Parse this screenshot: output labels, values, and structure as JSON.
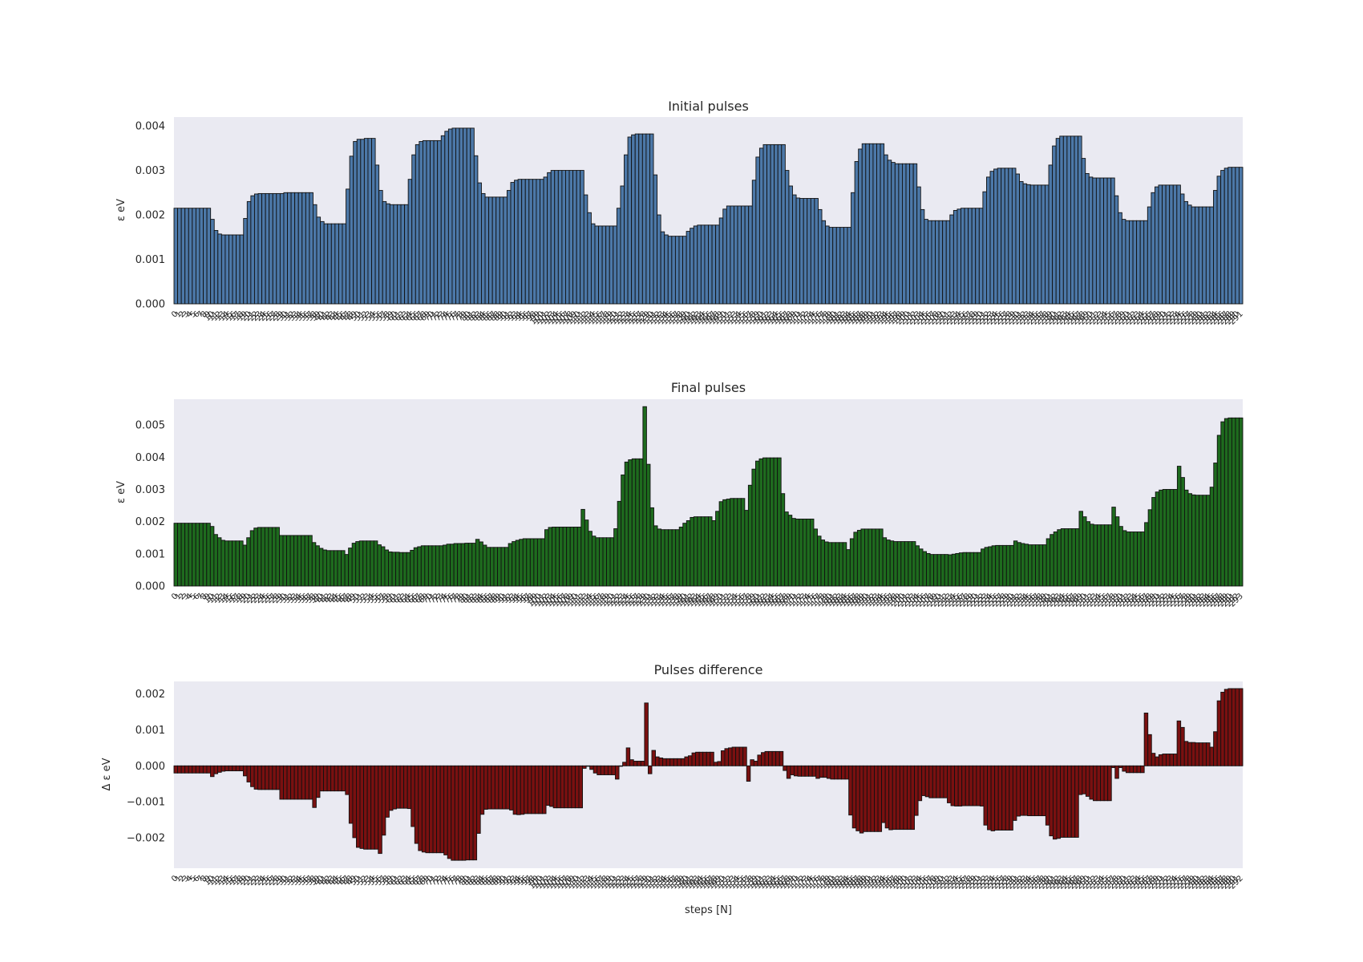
{
  "chart_data": [
    {
      "type": "bar",
      "title": "Initial pulses",
      "ylabel": "ε eV",
      "xlabel": "",
      "color": "#4c78a8",
      "ylim": [
        0,
        0.0042
      ],
      "yticks": [
        "0.000",
        "0.001",
        "0.002",
        "0.003",
        "0.004"
      ],
      "grid": false,
      "values": [
        0.00215,
        0.00215,
        0.00215,
        0.00215,
        0.00215,
        0.00215,
        0.00215,
        0.00215,
        0.00215,
        0.00215,
        0.0019,
        0.00165,
        0.00157,
        0.00155,
        0.00155,
        0.00155,
        0.00155,
        0.00155,
        0.00155,
        0.00192,
        0.0023,
        0.00243,
        0.00247,
        0.00248,
        0.00248,
        0.00248,
        0.00248,
        0.00248,
        0.00248,
        0.00248,
        0.0025,
        0.0025,
        0.0025,
        0.0025,
        0.0025,
        0.0025,
        0.0025,
        0.0025,
        0.00223,
        0.00195,
        0.00185,
        0.0018,
        0.0018,
        0.0018,
        0.0018,
        0.0018,
        0.0018,
        0.00258,
        0.00332,
        0.00365,
        0.0037,
        0.0037,
        0.00372,
        0.00372,
        0.00372,
        0.00312,
        0.00255,
        0.0023,
        0.00225,
        0.00223,
        0.00223,
        0.00223,
        0.00223,
        0.00223,
        0.0028,
        0.00335,
        0.00358,
        0.00365,
        0.00367,
        0.00367,
        0.00367,
        0.00367,
        0.00367,
        0.00378,
        0.00388,
        0.00393,
        0.00395,
        0.00395,
        0.00395,
        0.00395,
        0.00395,
        0.00395,
        0.00333,
        0.00272,
        0.00248,
        0.0024,
        0.0024,
        0.0024,
        0.0024,
        0.0024,
        0.0024,
        0.00255,
        0.00273,
        0.00278,
        0.0028,
        0.0028,
        0.0028,
        0.0028,
        0.0028,
        0.0028,
        0.0028,
        0.00285,
        0.00295,
        0.003,
        0.003,
        0.003,
        0.003,
        0.003,
        0.003,
        0.003,
        0.003,
        0.003,
        0.00245,
        0.00205,
        0.0018,
        0.00175,
        0.00175,
        0.00175,
        0.00175,
        0.00175,
        0.00175,
        0.00215,
        0.00265,
        0.00335,
        0.00375,
        0.0038,
        0.00382,
        0.00382,
        0.00382,
        0.00382,
        0.00382,
        0.0029,
        0.002,
        0.00162,
        0.00155,
        0.00152,
        0.00152,
        0.00152,
        0.00152,
        0.00152,
        0.00163,
        0.0017,
        0.00175,
        0.00177,
        0.00177,
        0.00177,
        0.00177,
        0.00177,
        0.00177,
        0.00193,
        0.00213,
        0.0022,
        0.0022,
        0.0022,
        0.0022,
        0.0022,
        0.0022,
        0.0022,
        0.00278,
        0.0033,
        0.0035,
        0.00358,
        0.00358,
        0.00358,
        0.00358,
        0.00358,
        0.00358,
        0.003,
        0.00265,
        0.00245,
        0.00238,
        0.00237,
        0.00237,
        0.00237,
        0.00237,
        0.00237,
        0.00212,
        0.00187,
        0.00175,
        0.00172,
        0.00172,
        0.00172,
        0.00172,
        0.00172,
        0.00172,
        0.0025,
        0.0032,
        0.00348,
        0.0036,
        0.0036,
        0.0036,
        0.0036,
        0.0036,
        0.0036,
        0.00335,
        0.00323,
        0.00318,
        0.00315,
        0.00315,
        0.00315,
        0.00315,
        0.00315,
        0.00315,
        0.00263,
        0.00212,
        0.0019,
        0.00187,
        0.00187,
        0.00187,
        0.00187,
        0.00187,
        0.00187,
        0.002,
        0.0021,
        0.00213,
        0.00215,
        0.00215,
        0.00215,
        0.00215,
        0.00215,
        0.00215,
        0.00252,
        0.00285,
        0.00298,
        0.00303,
        0.00305,
        0.00305,
        0.00305,
        0.00305,
        0.00305,
        0.00292,
        0.00275,
        0.0027,
        0.00268,
        0.00267,
        0.00267,
        0.00267,
        0.00267,
        0.00267,
        0.00312,
        0.00355,
        0.00372,
        0.00377,
        0.00377,
        0.00377,
        0.00377,
        0.00377,
        0.00377,
        0.00327,
        0.00293,
        0.00285,
        0.00283,
        0.00283,
        0.00283,
        0.00283,
        0.00283,
        0.00283,
        0.00243,
        0.00205,
        0.0019,
        0.00187,
        0.00187,
        0.00187,
        0.00187,
        0.00187,
        0.00187,
        0.00218,
        0.0025,
        0.00263,
        0.00267,
        0.00267,
        0.00267,
        0.00267,
        0.00267,
        0.00267,
        0.00247,
        0.0023,
        0.00222,
        0.00218,
        0.00218,
        0.00218,
        0.00218,
        0.00218,
        0.00218,
        0.00255,
        0.00287,
        0.003,
        0.00305,
        0.00307,
        0.00307,
        0.00307,
        0.00307
      ]
    },
    {
      "type": "bar",
      "title": "Final pulses",
      "ylabel": "ε eV",
      "xlabel": "",
      "color": "#1e6b1e",
      "ylim": [
        0,
        0.0058
      ],
      "yticks": [
        "0.000",
        "0.001",
        "0.002",
        "0.003",
        "0.004",
        "0.005"
      ],
      "grid": false,
      "values": [
        0.00195,
        0.00195,
        0.00195,
        0.00195,
        0.00195,
        0.00195,
        0.00195,
        0.00195,
        0.00195,
        0.00195,
        0.00185,
        0.0016,
        0.0015,
        0.00142,
        0.0014,
        0.0014,
        0.0014,
        0.0014,
        0.0014,
        0.00127,
        0.0015,
        0.00172,
        0.0018,
        0.00182,
        0.00182,
        0.00182,
        0.00182,
        0.00182,
        0.00182,
        0.00157,
        0.00157,
        0.00157,
        0.00157,
        0.00157,
        0.00157,
        0.00157,
        0.00157,
        0.00157,
        0.00135,
        0.00125,
        0.00117,
        0.00112,
        0.0011,
        0.0011,
        0.0011,
        0.0011,
        0.0011,
        0.00098,
        0.00118,
        0.00133,
        0.00138,
        0.0014,
        0.0014,
        0.0014,
        0.0014,
        0.0014,
        0.00128,
        0.00122,
        0.00112,
        0.00106,
        0.00105,
        0.00105,
        0.00104,
        0.00104,
        0.00104,
        0.00111,
        0.00119,
        0.00122,
        0.00125,
        0.00125,
        0.00125,
        0.00125,
        0.00125,
        0.00125,
        0.00127,
        0.0013,
        0.0013,
        0.00132,
        0.00132,
        0.00132,
        0.00133,
        0.00133,
        0.00133,
        0.00145,
        0.00137,
        0.00127,
        0.0012,
        0.0012,
        0.0012,
        0.0012,
        0.0012,
        0.0012,
        0.00132,
        0.00138,
        0.00142,
        0.00145,
        0.00147,
        0.00147,
        0.00147,
        0.00147,
        0.00147,
        0.00147,
        0.00175,
        0.00182,
        0.00183,
        0.00183,
        0.00183,
        0.00183,
        0.00183,
        0.00183,
        0.00183,
        0.00183,
        0.00238,
        0.00205,
        0.0017,
        0.00155,
        0.0015,
        0.0015,
        0.0015,
        0.0015,
        0.0015,
        0.00178,
        0.00263,
        0.00345,
        0.00385,
        0.00392,
        0.00395,
        0.00395,
        0.00395,
        0.00557,
        0.00378,
        0.00243,
        0.00187,
        0.00177,
        0.00175,
        0.00175,
        0.00175,
        0.00175,
        0.00175,
        0.00183,
        0.00195,
        0.00203,
        0.00213,
        0.00215,
        0.00215,
        0.00215,
        0.00215,
        0.00215,
        0.00203,
        0.00232,
        0.00262,
        0.00268,
        0.0027,
        0.00272,
        0.00272,
        0.00272,
        0.00272,
        0.00235,
        0.00313,
        0.00363,
        0.00388,
        0.00395,
        0.00398,
        0.00398,
        0.00398,
        0.00398,
        0.00398,
        0.00287,
        0.0023,
        0.0022,
        0.0021,
        0.00208,
        0.00208,
        0.00208,
        0.00208,
        0.00208,
        0.00177,
        0.00155,
        0.00143,
        0.00137,
        0.00135,
        0.00135,
        0.00135,
        0.00135,
        0.00135,
        0.00113,
        0.00147,
        0.00167,
        0.00173,
        0.00177,
        0.00177,
        0.00177,
        0.00177,
        0.00177,
        0.00177,
        0.0015,
        0.00143,
        0.0014,
        0.00138,
        0.00138,
        0.00138,
        0.00138,
        0.00138,
        0.00138,
        0.00125,
        0.00115,
        0.00107,
        0.00101,
        0.00098,
        0.00098,
        0.00098,
        0.00098,
        0.00098,
        0.00097,
        0.00099,
        0.00101,
        0.00103,
        0.00104,
        0.00104,
        0.00104,
        0.00104,
        0.00104,
        0.00115,
        0.0012,
        0.00122,
        0.00125,
        0.00126,
        0.00126,
        0.00126,
        0.00126,
        0.00126,
        0.0014,
        0.00135,
        0.00132,
        0.0013,
        0.00128,
        0.00128,
        0.00128,
        0.00128,
        0.00128,
        0.00147,
        0.0016,
        0.00168,
        0.00175,
        0.00178,
        0.00178,
        0.00178,
        0.00178,
        0.00178,
        0.00232,
        0.00215,
        0.002,
        0.00192,
        0.0019,
        0.0019,
        0.0019,
        0.0019,
        0.0019,
        0.00245,
        0.00215,
        0.00185,
        0.00172,
        0.00168,
        0.00168,
        0.00168,
        0.00168,
        0.00168,
        0.00197,
        0.00237,
        0.00275,
        0.00292,
        0.00298,
        0.003,
        0.003,
        0.003,
        0.003,
        0.00372,
        0.00337,
        0.00298,
        0.00287,
        0.00283,
        0.00282,
        0.00282,
        0.00282,
        0.00282,
        0.00307,
        0.00382,
        0.00468,
        0.0051,
        0.0052,
        0.00522,
        0.00522,
        0.00522,
        0.00522
      ]
    },
    {
      "type": "bar",
      "title": "Pulses difference",
      "ylabel": "Δ ε eV",
      "xlabel": "steps [N]",
      "color": "#7a1010",
      "ylim": [
        -0.00285,
        0.00235
      ],
      "yticks": [
        "−0.002",
        "−0.001",
        "0.000",
        "0.001",
        "0.002"
      ],
      "grid": false,
      "values": [
        -0.0002,
        -0.0002,
        -0.0002,
        -0.0002,
        -0.0002,
        -0.0002,
        -0.0002,
        -0.0002,
        -0.0002,
        -0.0002,
        -0.0003,
        -0.00022,
        -0.00018,
        -0.00015,
        -0.00014,
        -0.00014,
        -0.00014,
        -0.00014,
        -0.00014,
        -0.00028,
        -0.00045,
        -0.00058,
        -0.00065,
        -0.00066,
        -0.00066,
        -0.00066,
        -0.00066,
        -0.00066,
        -0.00066,
        -0.00093,
        -0.00093,
        -0.00093,
        -0.00093,
        -0.00093,
        -0.00093,
        -0.00093,
        -0.00093,
        -0.00093,
        -0.00116,
        -0.00088,
        -0.0007,
        -0.0007,
        -0.0007,
        -0.0007,
        -0.0007,
        -0.0007,
        -0.0007,
        -0.0008,
        -0.0016,
        -0.002,
        -0.00227,
        -0.0023,
        -0.00232,
        -0.00232,
        -0.00232,
        -0.00232,
        -0.00244,
        -0.00193,
        -0.00143,
        -0.00124,
        -0.0012,
        -0.00118,
        -0.00118,
        -0.00118,
        -0.00119,
        -0.00169,
        -0.00216,
        -0.00236,
        -0.0024,
        -0.00242,
        -0.00242,
        -0.00242,
        -0.00242,
        -0.00242,
        -0.00248,
        -0.00258,
        -0.00263,
        -0.00263,
        -0.00263,
        -0.00263,
        -0.00262,
        -0.00262,
        -0.00262,
        -0.00188,
        -0.00135,
        -0.00121,
        -0.0012,
        -0.0012,
        -0.0012,
        -0.0012,
        -0.0012,
        -0.0012,
        -0.00123,
        -0.00135,
        -0.00136,
        -0.00135,
        -0.00133,
        -0.00133,
        -0.00133,
        -0.00133,
        -0.00133,
        -0.00133,
        -0.0011,
        -0.00113,
        -0.00117,
        -0.00117,
        -0.00117,
        -0.00117,
        -0.00117,
        -0.00117,
        -0.00117,
        -0.00117,
        -7e-05,
        -0.0,
        -0.0001,
        -0.0002,
        -0.00025,
        -0.00025,
        -0.00025,
        -0.00025,
        -0.00025,
        -0.00037,
        0.0,
        0.0001,
        0.0005,
        0.00017,
        0.00013,
        0.00013,
        0.00013,
        0.00175,
        -0.00022,
        0.00043,
        0.00025,
        0.00022,
        0.0002,
        0.0002,
        0.0002,
        0.0002,
        0.0002,
        0.0002,
        0.00025,
        0.00028,
        0.00036,
        0.00038,
        0.00038,
        0.00038,
        0.00038,
        0.00038,
        0.0001,
        0.00012,
        0.00042,
        0.00048,
        0.0005,
        0.00052,
        0.00052,
        0.00052,
        0.00052,
        -0.00043,
        0.00017,
        0.00013,
        0.0003,
        0.00037,
        0.0004,
        0.0004,
        0.0004,
        0.0004,
        0.0004,
        -0.00013,
        -0.00035,
        -0.00025,
        -0.00028,
        -0.00029,
        -0.00029,
        -0.00029,
        -0.00029,
        -0.00029,
        -0.00035,
        -0.00032,
        -0.00032,
        -0.00035,
        -0.00037,
        -0.00037,
        -0.00037,
        -0.00037,
        -0.00037,
        -0.00137,
        -0.00173,
        -0.00181,
        -0.00187,
        -0.00183,
        -0.00183,
        -0.00183,
        -0.00183,
        -0.00183,
        -0.00158,
        -0.00173,
        -0.00178,
        -0.00177,
        -0.00177,
        -0.00177,
        -0.00177,
        -0.00177,
        -0.00177,
        -0.00138,
        -0.00097,
        -0.00083,
        -0.00086,
        -0.00089,
        -0.00089,
        -0.00089,
        -0.00089,
        -0.00089,
        -0.00103,
        -0.00111,
        -0.00112,
        -0.00112,
        -0.00111,
        -0.00111,
        -0.00111,
        -0.00111,
        -0.00111,
        -0.00112,
        -0.00165,
        -0.00178,
        -0.00181,
        -0.00179,
        -0.00179,
        -0.00179,
        -0.00179,
        -0.00179,
        -0.00152,
        -0.0014,
        -0.00138,
        -0.00138,
        -0.00139,
        -0.00139,
        -0.00139,
        -0.00139,
        -0.00139,
        -0.00165,
        -0.00195,
        -0.00204,
        -0.00202,
        -0.00199,
        -0.00199,
        -0.00199,
        -0.00199,
        -0.00199,
        -0.0008,
        -0.00078,
        -0.00085,
        -0.00093,
        -0.00097,
        -0.00097,
        -0.00097,
        -0.00097,
        -0.00097,
        -5e-05,
        -0.00035,
        -5e-05,
        -0.00015,
        -0.00019,
        -0.00019,
        -0.00019,
        -0.00019,
        -0.00019,
        0.00147,
        0.00087,
        0.00035,
        0.00025,
        0.00031,
        0.00033,
        0.00033,
        0.00033,
        0.00033,
        0.00125,
        0.00107,
        0.00068,
        0.00065,
        0.00065,
        0.00064,
        0.00064,
        0.00064,
        0.00064,
        0.00052,
        0.00095,
        0.00181,
        0.00205,
        0.00213,
        0.00215,
        0.00215,
        0.00215,
        0.00215
      ]
    }
  ]
}
